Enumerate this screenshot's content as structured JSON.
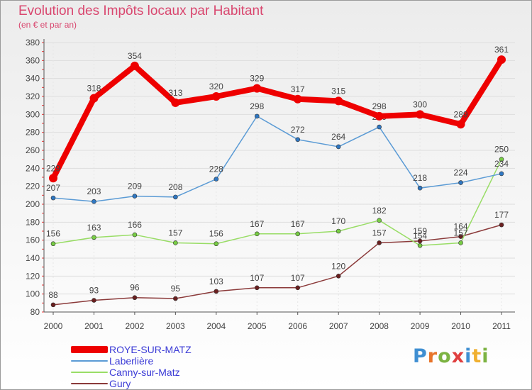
{
  "header": {
    "title": "Evolution des Impôts locaux par Habitant",
    "subtitle": "(en € et par an)"
  },
  "logo": {
    "text": "Proxiti",
    "letter_colors": [
      "#3f8fd2",
      "#e8742a",
      "#7cb342",
      "#e04040",
      "#3f8fd2",
      "#f0b030",
      "#7cb342"
    ]
  },
  "chart_data": {
    "type": "line",
    "title": "Evolution des Impôts locaux par Habitant",
    "subtitle": "(en € et par an)",
    "xlabel": "",
    "ylabel": "",
    "x": [
      "2000",
      "2001",
      "2002",
      "2003",
      "2004",
      "2005",
      "2006",
      "2007",
      "2008",
      "2009",
      "2010",
      "2011"
    ],
    "ylim": [
      80,
      380
    ],
    "yticks": [
      80,
      100,
      120,
      140,
      160,
      180,
      200,
      220,
      240,
      260,
      280,
      300,
      320,
      340,
      360,
      380
    ],
    "grid": "horizontal",
    "legend_position": "bottom-left",
    "series": [
      {
        "name": "ROYE-SUR-MATZ",
        "color": "#ee0000",
        "emphasis": true,
        "values": [
          229,
          318,
          354,
          313,
          320,
          329,
          317,
          315,
          298,
          300,
          289,
          361
        ],
        "labels": [
          "229",
          "318",
          "354",
          "313",
          "320",
          "329",
          "317",
          "315",
          "298",
          "300",
          "289",
          "361"
        ]
      },
      {
        "name": "Laberlière",
        "color": "#5b9bd5",
        "marker": "#2f77c2",
        "emphasis": false,
        "values": [
          207,
          203,
          209,
          208,
          228,
          298,
          272,
          264,
          286,
          218,
          224,
          234
        ],
        "labels": [
          "207",
          "203",
          "209",
          "208",
          "228",
          "298",
          "272",
          "264",
          "286",
          "218",
          "224",
          "234"
        ]
      },
      {
        "name": "Canny-sur-Matz",
        "color": "#99dd66",
        "marker": "#77cc44",
        "emphasis": false,
        "values": [
          156,
          163,
          166,
          157,
          156,
          167,
          167,
          170,
          182,
          154,
          157,
          250
        ],
        "labels": [
          "156",
          "163",
          "166",
          "157",
          "156",
          "167",
          "167",
          "170",
          "182",
          "154",
          "157",
          "250"
        ]
      },
      {
        "name": "Gury",
        "color": "#8b3a3a",
        "marker": "#6a1f1f",
        "emphasis": false,
        "values": [
          88,
          93,
          96,
          95,
          103,
          107,
          107,
          120,
          157,
          159,
          164,
          177
        ],
        "labels": [
          "88",
          "93",
          "96",
          "95",
          "103",
          "107",
          "107",
          "120",
          "157",
          "159",
          "164",
          "177"
        ]
      }
    ]
  }
}
